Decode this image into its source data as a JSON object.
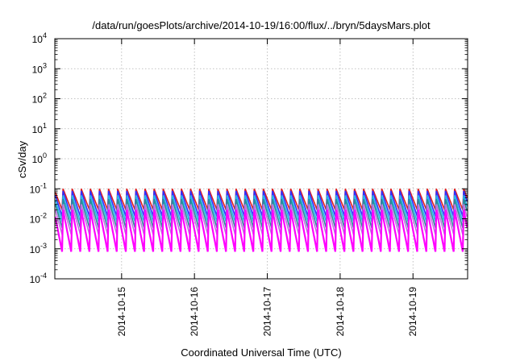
{
  "chart_data": {
    "type": "line",
    "title": "/data/run/goesPlots/archive/2014-10-19/16:00/flux/../bryn/5daysMars.plot",
    "xlabel": "Coordinated Universal Time (UTC)",
    "ylabel": "cSv/day",
    "yscale": "log",
    "ylim": [
      0.0001,
      10000
    ],
    "xlim": [
      "2014-10-14 02:00",
      "2014-10-19 18:00"
    ],
    "y_ticks": [
      {
        "mantissa": "10",
        "exp": "-4"
      },
      {
        "mantissa": "10",
        "exp": "-3"
      },
      {
        "mantissa": "10",
        "exp": "-2"
      },
      {
        "mantissa": "10",
        "exp": "-1"
      },
      {
        "mantissa": "10",
        "exp": "0"
      },
      {
        "mantissa": "10",
        "exp": "1"
      },
      {
        "mantissa": "10",
        "exp": "2"
      },
      {
        "mantissa": "10",
        "exp": "3"
      },
      {
        "mantissa": "10",
        "exp": "4"
      }
    ],
    "x_ticks": [
      "2014-10-15",
      "2014-10-16",
      "2014-10-17",
      "2014-10-18",
      "2014-10-19"
    ],
    "grid": true,
    "legend": "none",
    "cycle_hours": 3,
    "series": [
      {
        "color": "#e02020",
        "peak": 0.1,
        "trough": 0.02
      },
      {
        "color": "#3030ff",
        "peak": 0.085,
        "trough": 0.012
      },
      {
        "color": "#20b8e8",
        "peak": 0.06,
        "trough": 0.008
      },
      {
        "color": "#2a8a9a",
        "peak": 0.045,
        "trough": 0.005
      },
      {
        "color": "#c070e0",
        "peak": 0.03,
        "trough": 0.003
      },
      {
        "color": "#ff00ff",
        "peak": 0.02,
        "trough": 0.0008
      }
    ]
  }
}
